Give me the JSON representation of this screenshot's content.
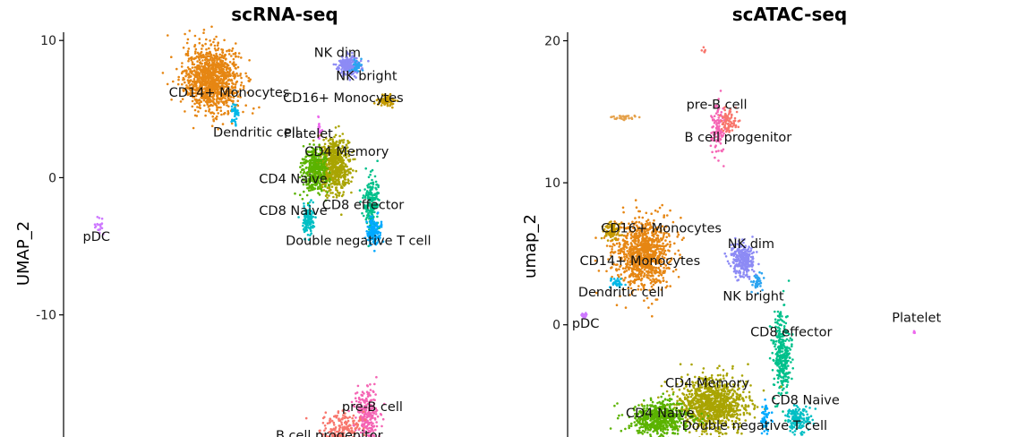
{
  "chart_data": [
    {
      "type": "scatter",
      "title": "scRNA-seq",
      "ylabel": "UMAP_2",
      "xlabel": "",
      "ylim": [
        -18.9,
        10.6
      ],
      "y_ticks": [
        {
          "value": 10,
          "label": "10"
        },
        {
          "value": 0,
          "label": "0"
        },
        {
          "value": -10,
          "label": "-10"
        }
      ],
      "clusters": [
        {
          "name": "CD14+ Monocytes",
          "color": "#E68613",
          "x": -8.5,
          "y": 7.2,
          "sx": 1.2,
          "sy": 1.2,
          "n": 1100
        },
        {
          "name": "Dendritic cell",
          "color": "#00B8E7",
          "x": -6.5,
          "y": 4.6,
          "sx": 0.15,
          "sy": 0.4,
          "n": 40
        },
        {
          "name": "NK dim",
          "color": "#8D8BF5",
          "x": 3.3,
          "y": 8.2,
          "sx": 0.45,
          "sy": 0.35,
          "n": 220
        },
        {
          "name": "NK bright",
          "color": "#2BA4F0",
          "x": 4.0,
          "y": 8.1,
          "sx": 0.2,
          "sy": 0.2,
          "n": 40
        },
        {
          "name": "CD16+ Monocytes",
          "color": "#C49A00",
          "x": 6.5,
          "y": 5.6,
          "sx": 0.35,
          "sy": 0.2,
          "n": 90
        },
        {
          "name": "Platelet",
          "color": "#ED68ED",
          "x": 0.7,
          "y": 3.4,
          "sx": 0.1,
          "sy": 0.35,
          "n": 20
        },
        {
          "name": "CD4 Memory",
          "color": "#A9A402",
          "x": 2.0,
          "y": 0.8,
          "sx": 0.7,
          "sy": 1.0,
          "n": 600
        },
        {
          "name": "CD4 Naive",
          "color": "#5BB300",
          "x": 0.3,
          "y": 0.6,
          "sx": 0.5,
          "sy": 0.8,
          "n": 380
        },
        {
          "name": "CD8 effector",
          "color": "#00C08B",
          "x": 5.2,
          "y": -2.0,
          "sx": 0.3,
          "sy": 1.0,
          "n": 200
        },
        {
          "name": "Double negative T cell",
          "color": "#00A9FF",
          "x": 5.4,
          "y": -4.0,
          "sx": 0.3,
          "sy": 0.5,
          "n": 140
        },
        {
          "name": "CD8 Naive",
          "color": "#00BFC4",
          "x": -0.2,
          "y": -3.1,
          "sx": 0.25,
          "sy": 0.6,
          "n": 120
        },
        {
          "name": "pDC",
          "color": "#CD78FF",
          "x": -18.2,
          "y": -3.5,
          "sx": 0.2,
          "sy": 0.35,
          "n": 20
        },
        {
          "name": "pre-B cell",
          "color": "#F564B4",
          "x": 4.8,
          "y": -17.3,
          "sx": 0.5,
          "sy": 1.0,
          "n": 240
        },
        {
          "name": "B cell progenitor",
          "color": "#F8766D",
          "x": 2.6,
          "y": -18.3,
          "sx": 0.9,
          "sy": 0.7,
          "n": 200
        }
      ],
      "labels": [
        {
          "text": "NK dim",
          "x": 2.3,
          "y": 8.8
        },
        {
          "text": "NK bright",
          "x": 4.8,
          "y": 7.1
        },
        {
          "text": "CD16+ Monocytes",
          "x": 2.8,
          "y": 5.5
        },
        {
          "text": "CD14+ Monocytes",
          "x": -7.0,
          "y": 5.9
        },
        {
          "text": "Dendritic cell",
          "x": -4.7,
          "y": 3.0
        },
        {
          "text": "Platelet",
          "x": -0.2,
          "y": 2.9
        },
        {
          "text": "CD4 Memory",
          "x": 3.1,
          "y": 1.6
        },
        {
          "text": "CD4 Naive",
          "x": -1.5,
          "y": -0.4
        },
        {
          "text": "CD8 effector",
          "x": 4.5,
          "y": -2.3
        },
        {
          "text": "CD8 Naive",
          "x": -1.5,
          "y": -2.7
        },
        {
          "text": "Double negative T cell",
          "x": 4.1,
          "y": -4.9
        },
        {
          "text": "pDC",
          "x": -18.4,
          "y": -4.6
        },
        {
          "text": "pre-B cell",
          "x": 5.3,
          "y": -17.0
        },
        {
          "text": "B cell progenitor",
          "x": 1.6,
          "y": -19.1
        }
      ]
    },
    {
      "type": "scatter",
      "title": "scATAC-seq",
      "ylabel": "umap_2",
      "xlabel": "",
      "ylim": [
        -7.9,
        20.6
      ],
      "y_ticks": [
        {
          "value": 20,
          "label": "20"
        },
        {
          "value": 10,
          "label": "10"
        },
        {
          "value": 0,
          "label": "0"
        }
      ],
      "clusters": [
        {
          "name": "CD14+ Monocytes",
          "color": "#E68613",
          "x": -10.8,
          "y": 5.0,
          "sx": 1.2,
          "sy": 1.2,
          "n": 950
        },
        {
          "name": "CD16+ Monocytes",
          "color": "#C49A00",
          "x": -13.4,
          "y": 6.6,
          "sx": 0.35,
          "sy": 0.3,
          "n": 90
        },
        {
          "name": "Dendritic cell",
          "color": "#00B8E7",
          "x": -13.0,
          "y": 3.0,
          "sx": 0.3,
          "sy": 0.2,
          "n": 30
        },
        {
          "name": "pDC",
          "color": "#CD78FF",
          "x": -15.7,
          "y": 0.6,
          "sx": 0.15,
          "sy": 0.15,
          "n": 12
        },
        {
          "name": "pre-B cell",
          "color": "#F564B4",
          "x": -4.4,
          "y": 13.8,
          "sx": 0.3,
          "sy": 0.9,
          "n": 110
        },
        {
          "name": "B cell progenitor",
          "color": "#F8766D",
          "x": -3.5,
          "y": 14.3,
          "sx": 0.4,
          "sy": 0.4,
          "n": 80
        },
        {
          "name": "unlabeled cluster",
          "color": "#E5A14A",
          "x": -12.2,
          "y": 14.6,
          "sx": 0.5,
          "sy": 0.08,
          "n": 30
        },
        {
          "name": "unlabeled top",
          "color": "#F8766D",
          "x": -5.6,
          "y": 19.4,
          "sx": 0.08,
          "sy": 0.12,
          "n": 6
        },
        {
          "name": "NK dim",
          "color": "#8D8BF5",
          "x": -2.3,
          "y": 4.6,
          "sx": 0.5,
          "sy": 0.6,
          "n": 260
        },
        {
          "name": "NK bright",
          "color": "#2BA4F0",
          "x": -1.1,
          "y": 3.0,
          "sx": 0.25,
          "sy": 0.3,
          "n": 40
        },
        {
          "name": "CD8 effector",
          "color": "#00C08B",
          "x": 1.0,
          "y": -2.0,
          "sx": 0.35,
          "sy": 1.6,
          "n": 320
        },
        {
          "name": "CD4 Memory",
          "color": "#A9A402",
          "x": -4.8,
          "y": -5.6,
          "sx": 1.5,
          "sy": 0.9,
          "n": 1000
        },
        {
          "name": "CD4 Naive",
          "color": "#5BB300",
          "x": -9.3,
          "y": -6.6,
          "sx": 1.2,
          "sy": 0.6,
          "n": 600
        },
        {
          "name": "CD8 Naive",
          "color": "#00BFC4",
          "x": 2.4,
          "y": -6.6,
          "sx": 0.5,
          "sy": 0.45,
          "n": 150
        },
        {
          "name": "Double negative T cell",
          "color": "#00A9FF",
          "x": -0.4,
          "y": -6.6,
          "sx": 0.2,
          "sy": 0.6,
          "n": 50
        },
        {
          "name": "Platelet",
          "color": "#ED68ED",
          "x": 12.2,
          "y": -0.5,
          "sx": 0.05,
          "sy": 0.05,
          "n": 4
        }
      ],
      "labels": [
        {
          "text": "pre-B cell",
          "x": -4.5,
          "y": 15.2
        },
        {
          "text": "B cell progenitor",
          "x": -2.7,
          "y": 12.9
        },
        {
          "text": "CD16+ Monocytes",
          "x": -9.2,
          "y": 6.5
        },
        {
          "text": "NK dim",
          "x": -1.6,
          "y": 5.4
        },
        {
          "text": "CD14+ Monocytes",
          "x": -11.0,
          "y": 4.2
        },
        {
          "text": "Dendritic cell",
          "x": -12.6,
          "y": 2.0
        },
        {
          "text": "NK bright",
          "x": -1.4,
          "y": 1.7
        },
        {
          "text": "pDC",
          "x": -15.6,
          "y": -0.2
        },
        {
          "text": "Platelet",
          "x": 12.4,
          "y": 0.2
        },
        {
          "text": "CD8 effector",
          "x": 1.8,
          "y": -0.8
        },
        {
          "text": "CD4 Memory",
          "x": -5.3,
          "y": -4.4
        },
        {
          "text": "CD8 Naive",
          "x": 3.0,
          "y": -5.6
        },
        {
          "text": "CD4 Naive",
          "x": -9.3,
          "y": -6.5
        },
        {
          "text": "Double negative T cell",
          "x": -1.3,
          "y": -7.4
        }
      ]
    }
  ]
}
